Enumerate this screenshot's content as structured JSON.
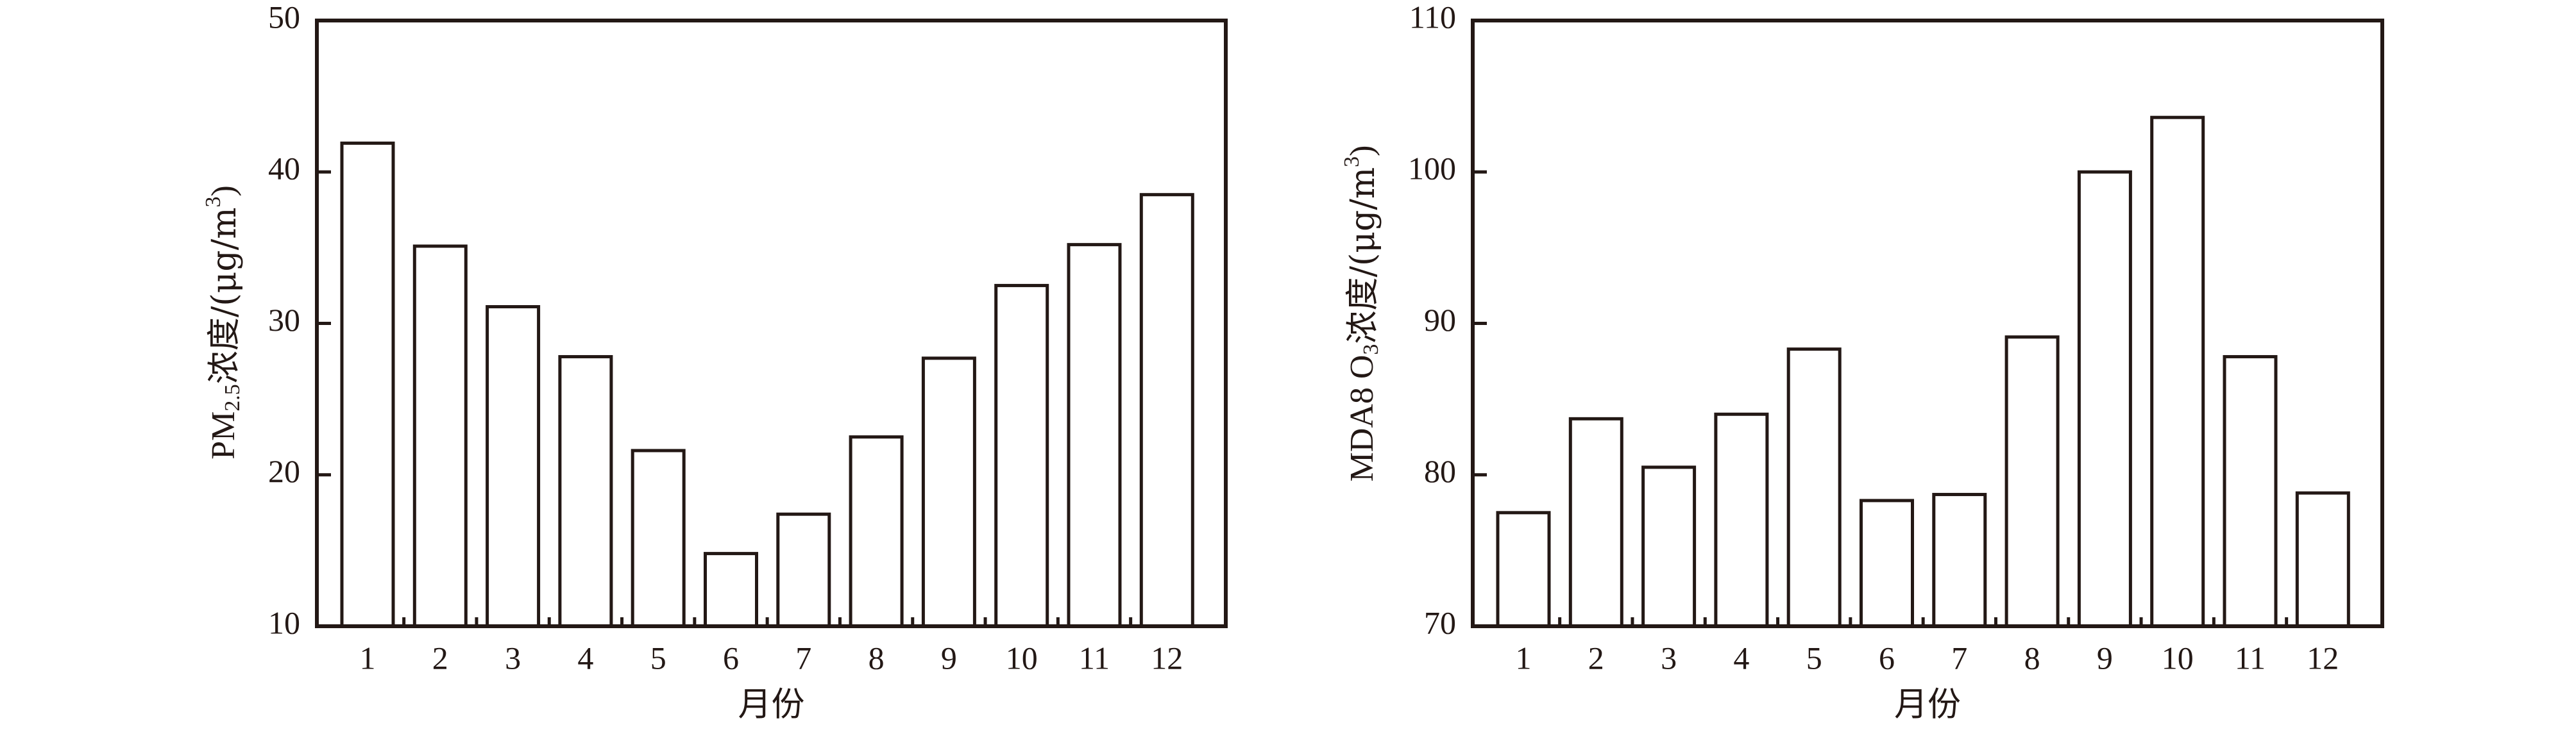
{
  "chart_data": [
    {
      "type": "bar",
      "categories": [
        "1",
        "2",
        "3",
        "4",
        "5",
        "6",
        "7",
        "8",
        "9",
        "10",
        "11",
        "12"
      ],
      "values": [
        41.9,
        35.1,
        31.1,
        27.8,
        21.6,
        14.8,
        17.4,
        22.5,
        27.7,
        32.5,
        35.2,
        38.5
      ],
      "title": "",
      "xlabel": "月份",
      "ylabel": "PM2.5浓度/(μg/m3)",
      "ylabel_parts": {
        "main": "PM",
        "sub": "2.5",
        "mid": "浓度/(μg/m",
        "sup": "3",
        "end": ")"
      },
      "ylim": [
        10,
        50
      ],
      "yticks": [
        10,
        20,
        30,
        40,
        50
      ],
      "grid": false,
      "legend": null,
      "bar_fill": "#ffffff",
      "bar_stroke": "#231815"
    },
    {
      "type": "bar",
      "categories": [
        "1",
        "2",
        "3",
        "4",
        "5",
        "6",
        "7",
        "8",
        "9",
        "10",
        "11",
        "12"
      ],
      "values": [
        77.5,
        83.7,
        80.5,
        84.0,
        88.3,
        78.3,
        78.7,
        89.1,
        100.0,
        103.6,
        87.8,
        78.8
      ],
      "title": "",
      "xlabel": "月份",
      "ylabel": "MDA8 O3浓度/(μg/m3)",
      "ylabel_parts": {
        "main": "MDA8 O",
        "sub": "3",
        "mid": "浓度/(μg/m",
        "sup": "3",
        "end": ")"
      },
      "ylim": [
        70,
        110
      ],
      "yticks": [
        70,
        80,
        90,
        100,
        110
      ],
      "grid": false,
      "legend": null,
      "bar_fill": "#ffffff",
      "bar_stroke": "#231815"
    }
  ],
  "panels": [
    {
      "xlabel": "月份",
      "ytick_labels": [
        "10",
        "20",
        "30",
        "40",
        "50"
      ],
      "xtick_labels": [
        "1",
        "2",
        "3",
        "4",
        "5",
        "6",
        "7",
        "8",
        "9",
        "10",
        "11",
        "12"
      ],
      "ylabel": {
        "main": "PM",
        "sub": "2.5",
        "mid": "浓度/(μg/m",
        "sup": "3",
        "end": ")"
      }
    },
    {
      "xlabel": "月份",
      "ytick_labels": [
        "70",
        "80",
        "90",
        "100",
        "110"
      ],
      "xtick_labels": [
        "1",
        "2",
        "3",
        "4",
        "5",
        "6",
        "7",
        "8",
        "9",
        "10",
        "11",
        "12"
      ],
      "ylabel": {
        "main": "MDA8 O",
        "sub": "3",
        "mid": "浓度/(μg/m",
        "sup": "3",
        "end": ")"
      }
    }
  ]
}
